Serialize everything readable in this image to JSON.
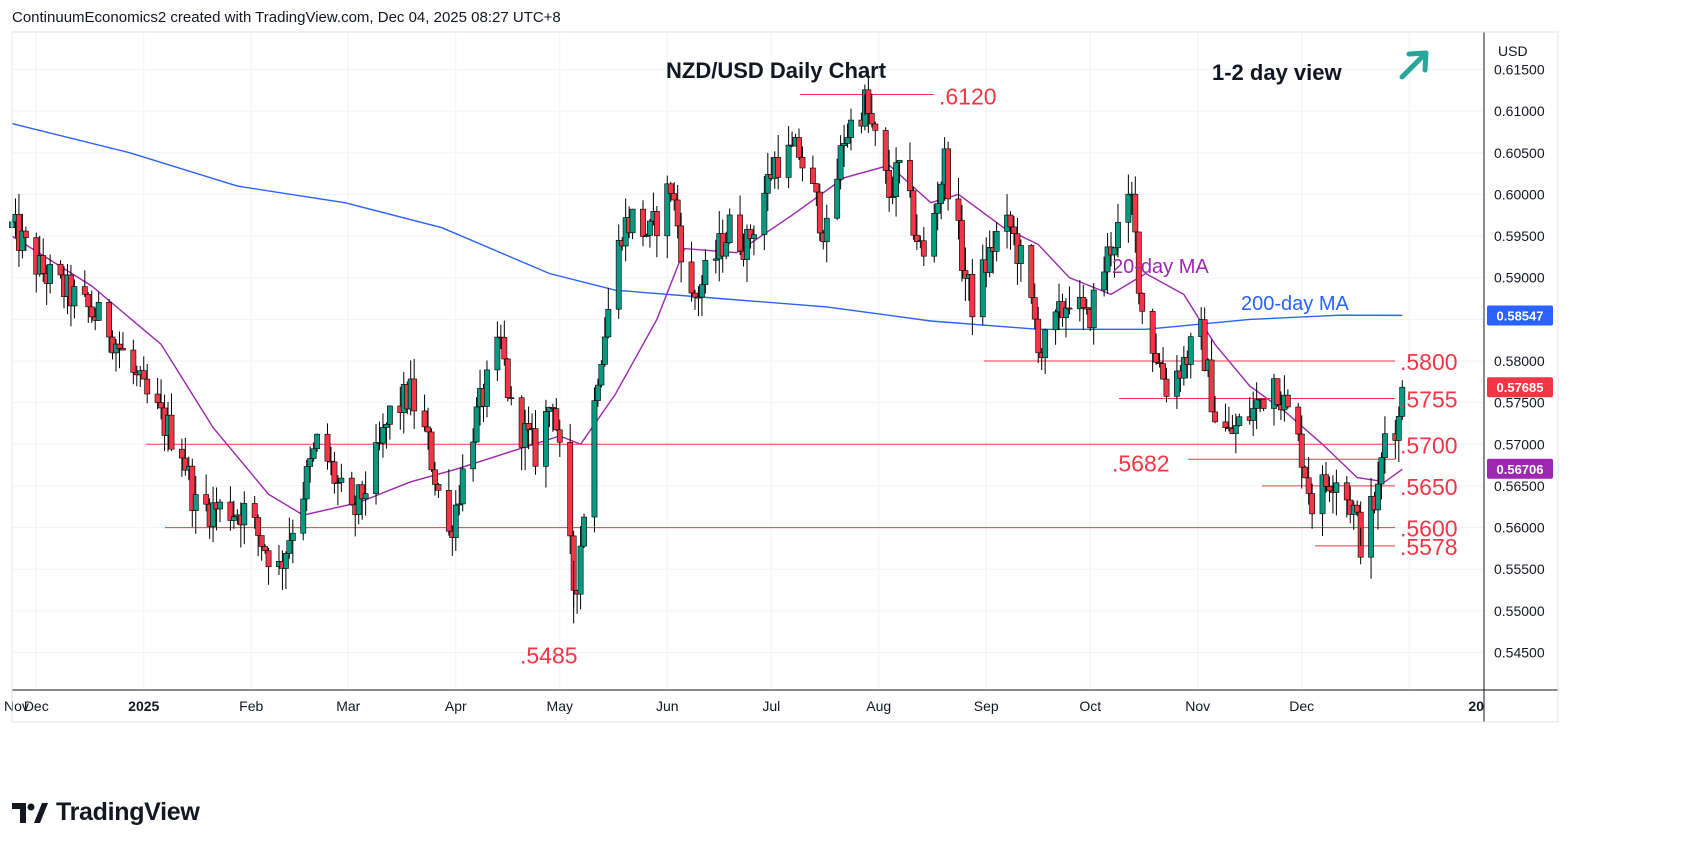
{
  "header": {
    "credit": "ContinuumEconomics2 created with TradingView.com, Dec 04, 2025 08:27 UTC+8"
  },
  "brand": {
    "logo_text": "TradingView"
  },
  "chart_data": {
    "type": "candlestick",
    "title": "NZD/USD Daily Chart",
    "view_label": "1-2 day view",
    "view_direction": "up",
    "currency": "USD",
    "y_ticks": [
      "0.61500",
      "0.61000",
      "0.60500",
      "0.60000",
      "0.59500",
      "0.59000",
      "0.58500",
      "0.58000",
      "0.57500",
      "0.57000",
      "0.56500",
      "0.56000",
      "0.55500",
      "0.55000",
      "0.54500"
    ],
    "x_ticks": [
      "Nov",
      "Dec",
      "2025",
      "Feb",
      "Mar",
      "Apr",
      "May",
      "Jun",
      "Jul",
      "Aug",
      "Sep",
      "Oct",
      "Nov",
      "Dec",
      "20"
    ],
    "ylim": [
      0.5405,
      0.6195
    ],
    "grid": true,
    "price_badges": [
      {
        "label": "0.58547",
        "value": 0.58547,
        "color": "#2962ff",
        "series": "200-day MA"
      },
      {
        "label": "0.57685",
        "value": 0.57685,
        "color": "#f23645",
        "series": "last price"
      },
      {
        "label": "0.56706",
        "value": 0.56706,
        "color": "#9c27b0",
        "series": "20-day MA"
      }
    ],
    "ma_labels": [
      {
        "label": "20-day MA",
        "color": "#9c27b0"
      },
      {
        "label": "200-day MA",
        "color": "#2962ff"
      }
    ],
    "levels": [
      {
        "label": ".6120",
        "value": 0.612,
        "type": "high"
      },
      {
        "label": ".5800",
        "value": 0.58,
        "type": "resistance"
      },
      {
        "label": ".5755",
        "value": 0.5755,
        "type": "resistance"
      },
      {
        "label": ".5700",
        "value": 0.57,
        "type": "support"
      },
      {
        "label": ".5682",
        "value": 0.5682,
        "type": "support"
      },
      {
        "label": ".5650",
        "value": 0.565,
        "type": "support"
      },
      {
        "label": ".5600",
        "value": 0.56,
        "type": "support"
      },
      {
        "label": ".5578",
        "value": 0.5578,
        "type": "support"
      },
      {
        "label": ".5485",
        "value": 0.5485,
        "type": "low"
      }
    ],
    "anchors": [
      {
        "date": "Oct 28",
        "price": 0.596
      },
      {
        "date": "Nov 05",
        "price": 0.591
      },
      {
        "date": "Nov 25",
        "price": 0.584
      },
      {
        "date": "Dec 05",
        "price": 0.576
      },
      {
        "date": "Dec 16",
        "price": 0.5695
      },
      {
        "date": "Dec 20",
        "price": 0.5625
      },
      {
        "date": "Jan 03",
        "price": 0.562
      },
      {
        "date": "Jan 10",
        "price": 0.557
      },
      {
        "date": "Jan 13",
        "price": 0.555
      },
      {
        "date": "Jan 24",
        "price": 0.57
      },
      {
        "date": "Jan 27",
        "price": 0.568
      },
      {
        "date": "Feb 03",
        "price": 0.561
      },
      {
        "date": "Feb 10",
        "price": 0.568
      },
      {
        "date": "Feb 14",
        "price": 0.5735
      },
      {
        "date": "Feb 20",
        "price": 0.576
      },
      {
        "date": "Feb 25",
        "price": 0.57
      },
      {
        "date": "Mar 03",
        "price": 0.559
      },
      {
        "date": "Mar 10",
        "price": 0.572
      },
      {
        "date": "Mar 18",
        "price": 0.582
      },
      {
        "date": "Mar 21",
        "price": 0.574
      },
      {
        "date": "Mar 28",
        "price": 0.569
      },
      {
        "date": "Apr 02",
        "price": 0.576
      },
      {
        "date": "Apr 08",
        "price": 0.553
      },
      {
        "date": "Apr 09",
        "price": 0.554
      },
      {
        "date": "Apr 15",
        "price": 0.579
      },
      {
        "date": "Apr 22",
        "price": 0.596
      },
      {
        "date": "Apr 25",
        "price": 0.597
      },
      {
        "date": "Apr 30",
        "price": 0.595
      },
      {
        "date": "May 06",
        "price": 0.601
      },
      {
        "date": "May 12",
        "price": 0.587
      },
      {
        "date": "May 16",
        "price": 0.59
      },
      {
        "date": "May 23",
        "price": 0.596
      },
      {
        "date": "May 28",
        "price": 0.594
      },
      {
        "date": "Jun 05",
        "price": 0.604
      },
      {
        "date": "Jun 12",
        "price": 0.605
      },
      {
        "date": "Jun 20",
        "price": 0.595
      },
      {
        "date": "Jun 25",
        "price": 0.607
      },
      {
        "date": "Jul 01",
        "price": 0.611
      },
      {
        "date": "Jul 08",
        "price": 0.6
      },
      {
        "date": "Jul 11",
        "price": 0.603
      },
      {
        "date": "Jul 16",
        "price": 0.595
      },
      {
        "date": "Jul 18",
        "price": 0.592
      },
      {
        "date": "Jul 24",
        "price": 0.604
      },
      {
        "date": "Jul 30",
        "price": 0.59
      },
      {
        "date": "Aug 01",
        "price": 0.587
      },
      {
        "date": "Aug 08",
        "price": 0.595
      },
      {
        "date": "Aug 12",
        "price": 0.596
      },
      {
        "date": "Aug 15",
        "price": 0.592
      },
      {
        "date": "Aug 21",
        "price": 0.581
      },
      {
        "date": "Aug 27",
        "price": 0.586
      },
      {
        "date": "Aug 29",
        "price": 0.588
      },
      {
        "date": "Sep 03",
        "price": 0.5845
      },
      {
        "date": "Sep 10",
        "price": 0.594
      },
      {
        "date": "Sep 16",
        "price": 0.599
      },
      {
        "date": "Sep 19",
        "price": 0.586
      },
      {
        "date": "Sep 26",
        "price": 0.577
      },
      {
        "date": "Oct 01",
        "price": 0.58
      },
      {
        "date": "Oct 06",
        "price": 0.583
      },
      {
        "date": "Oct 10",
        "price": 0.5735
      },
      {
        "date": "Oct 14",
        "price": 0.571
      },
      {
        "date": "Oct 21",
        "price": 0.574
      },
      {
        "date": "Oct 27",
        "price": 0.578
      },
      {
        "date": "Oct 29",
        "price": 0.576
      },
      {
        "date": "Nov 04",
        "price": 0.569
      },
      {
        "date": "Nov 07",
        "price": 0.563
      },
      {
        "date": "Nov 12",
        "price": 0.566
      },
      {
        "date": "Nov 14",
        "price": 0.5665
      },
      {
        "date": "Nov 19",
        "price": 0.562
      },
      {
        "date": "Nov 21",
        "price": 0.5585
      },
      {
        "date": "Nov 26",
        "price": 0.564
      },
      {
        "date": "Nov 28",
        "price": 0.5715
      },
      {
        "date": "Dec 02",
        "price": 0.573
      },
      {
        "date": "Dec 03",
        "price": 0.577
      }
    ],
    "ma20": [
      {
        "date": "Oct 28",
        "price": 0.595
      },
      {
        "date": "Nov 20",
        "price": 0.589
      },
      {
        "date": "Dec 10",
        "price": 0.582
      },
      {
        "date": "Dec 25",
        "price": 0.572
      },
      {
        "date": "Jan 10",
        "price": 0.564
      },
      {
        "date": "Jan 20",
        "price": 0.5615
      },
      {
        "date": "Feb 05",
        "price": 0.563
      },
      {
        "date": "Feb 20",
        "price": 0.5655
      },
      {
        "date": "Mar 05",
        "price": 0.567
      },
      {
        "date": "Mar 20",
        "price": 0.569
      },
      {
        "date": "Apr 04",
        "price": 0.571
      },
      {
        "date": "Apr 10",
        "price": 0.57
      },
      {
        "date": "Apr 20",
        "price": 0.576
      },
      {
        "date": "May 02",
        "price": 0.585
      },
      {
        "date": "May 10",
        "price": 0.5935
      },
      {
        "date": "May 25",
        "price": 0.593
      },
      {
        "date": "Jun 10",
        "price": 0.5975
      },
      {
        "date": "Jun 25",
        "price": 0.602
      },
      {
        "date": "Jul 08",
        "price": 0.6035
      },
      {
        "date": "Jul 20",
        "price": 0.599
      },
      {
        "date": "Jul 28",
        "price": 0.6
      },
      {
        "date": "Aug 10",
        "price": 0.596
      },
      {
        "date": "Aug 20",
        "price": 0.594
      },
      {
        "date": "Aug 29",
        "price": 0.59
      },
      {
        "date": "Sep 10",
        "price": 0.588
      },
      {
        "date": "Sep 20",
        "price": 0.5905
      },
      {
        "date": "Oct 01",
        "price": 0.588
      },
      {
        "date": "Oct 10",
        "price": 0.582
      },
      {
        "date": "Oct 20",
        "price": 0.577
      },
      {
        "date": "Oct 30",
        "price": 0.574
      },
      {
        "date": "Nov 10",
        "price": 0.57
      },
      {
        "date": "Nov 20",
        "price": 0.566
      },
      {
        "date": "Nov 28",
        "price": 0.5655
      },
      {
        "date": "Dec 03",
        "price": 0.567
      }
    ],
    "ma200": [
      {
        "date": "Oct 28",
        "price": 0.6085
      },
      {
        "date": "Dec 01",
        "price": 0.605
      },
      {
        "date": "Jan 01",
        "price": 0.601
      },
      {
        "date": "Feb 01",
        "price": 0.599
      },
      {
        "date": "Mar 01",
        "price": 0.596
      },
      {
        "date": "Apr 01",
        "price": 0.5905
      },
      {
        "date": "Apr 20",
        "price": 0.5885
      },
      {
        "date": "May 20",
        "price": 0.5875
      },
      {
        "date": "Jun 20",
        "price": 0.5865
      },
      {
        "date": "Jul 20",
        "price": 0.5848
      },
      {
        "date": "Aug 20",
        "price": 0.5838
      },
      {
        "date": "Sep 20",
        "price": 0.5838
      },
      {
        "date": "Oct 20",
        "price": 0.585
      },
      {
        "date": "Nov 15",
        "price": 0.5855
      },
      {
        "date": "Dec 03",
        "price": 0.58547
      }
    ]
  }
}
